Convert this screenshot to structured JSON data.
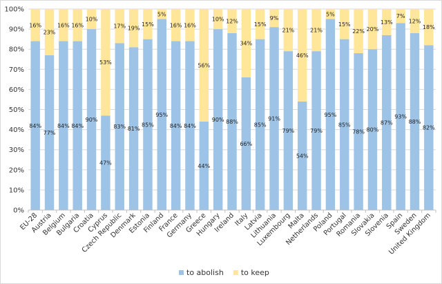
{
  "chart_data": {
    "type": "bar",
    "stacked": true,
    "categories": [
      "EU-28",
      "Austria",
      "Belgium",
      "Bulgaria",
      "Croatia",
      "Cyprus",
      "Czech Republic",
      "Denmark",
      "Estonia",
      "Finland",
      "France",
      "Germany",
      "Greece",
      "Hungary",
      "Ireland",
      "Italy",
      "Latvia",
      "Lithuania",
      "Luxembourg",
      "Malta",
      "Netherlands",
      "Poland",
      "Portugal",
      "Romania",
      "Slovakia",
      "Slovenia",
      "Spain",
      "Sweden",
      "United Kingdom"
    ],
    "series": [
      {
        "name": "to abolish",
        "color": "#9dc3e6",
        "values": [
          84,
          77,
          84,
          84,
          90,
          47,
          83,
          81,
          85,
          95,
          84,
          84,
          44,
          90,
          88,
          66,
          85,
          91,
          79,
          54,
          79,
          95,
          85,
          78,
          80,
          87,
          93,
          88,
          82
        ]
      },
      {
        "name": "to keep",
        "color": "#ffe699",
        "values": [
          16,
          23,
          16,
          16,
          10,
          53,
          17,
          19,
          15,
          5,
          16,
          16,
          56,
          10,
          12,
          34,
          15,
          9,
          21,
          46,
          21,
          5,
          15,
          22,
          20,
          13,
          7,
          12,
          18
        ]
      }
    ],
    "ylim": [
      0,
      100
    ],
    "yticks": [
      "0%",
      "10%",
      "20%",
      "30%",
      "40%",
      "50%",
      "60%",
      "70%",
      "80%",
      "90%",
      "100%"
    ],
    "legend_position": "bottom",
    "grid": true
  }
}
